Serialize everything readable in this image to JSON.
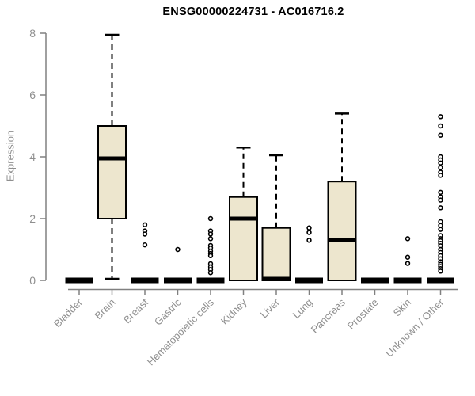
{
  "chart_data": {
    "type": "boxplot",
    "title": "ENSG00000224731 - AC016716.2",
    "ylabel": "Expression",
    "xlabel": "",
    "ylim": [
      0,
      8
    ],
    "yticks": [
      0,
      2,
      4,
      6,
      8
    ],
    "grid": false,
    "legend": "none",
    "categories": [
      "Bladder",
      "Brain",
      "Breast",
      "Gastric",
      "Hematopoietic cells",
      "Kidney",
      "Liver",
      "Lung",
      "Pancreas",
      "Prostate",
      "Skin",
      "Unknown / Other"
    ],
    "boxes": [
      {
        "category": "Bladder",
        "whisker_low": 0,
        "q1": 0,
        "median": 0,
        "q3": 0,
        "whisker_high": 0,
        "outliers": []
      },
      {
        "category": "Brain",
        "whisker_low": 0.05,
        "q1": 2.0,
        "median": 3.95,
        "q3": 5.0,
        "whisker_high": 7.95,
        "outliers": []
      },
      {
        "category": "Breast",
        "whisker_low": 0,
        "q1": 0,
        "median": 0,
        "q3": 0,
        "whisker_high": 0,
        "outliers": [
          1.8,
          1.6,
          1.5,
          1.15
        ]
      },
      {
        "category": "Gastric",
        "whisker_low": 0,
        "q1": 0,
        "median": 0,
        "q3": 0,
        "whisker_high": 0,
        "outliers": [
          1.0
        ]
      },
      {
        "category": "Hematopoietic cells",
        "whisker_low": 0,
        "q1": 0,
        "median": 0,
        "q3": 0,
        "whisker_high": 0,
        "outliers": [
          2.0,
          1.6,
          1.5,
          1.35,
          1.13,
          1.05,
          0.95,
          0.87,
          0.8,
          0.54,
          0.44,
          0.35,
          0.25
        ]
      },
      {
        "category": "Kidney",
        "whisker_low": 0,
        "q1": 0,
        "median": 2.0,
        "q3": 2.7,
        "whisker_high": 4.3,
        "outliers": []
      },
      {
        "category": "Liver",
        "whisker_low": 0,
        "q1": 0,
        "median": 0.05,
        "q3": 1.7,
        "whisker_high": 4.05,
        "outliers": []
      },
      {
        "category": "Lung",
        "whisker_low": 0,
        "q1": 0,
        "median": 0,
        "q3": 0,
        "whisker_high": 0,
        "outliers": [
          1.7,
          1.55,
          1.3
        ]
      },
      {
        "category": "Pancreas",
        "whisker_low": 0,
        "q1": 0,
        "median": 1.3,
        "q3": 3.2,
        "whisker_high": 5.4,
        "outliers": []
      },
      {
        "category": "Prostate",
        "whisker_low": 0,
        "q1": 0,
        "median": 0,
        "q3": 0,
        "whisker_high": 0,
        "outliers": []
      },
      {
        "category": "Skin",
        "whisker_low": 0,
        "q1": 0,
        "median": 0,
        "q3": 0,
        "whisker_high": 0,
        "outliers": [
          1.35,
          0.75,
          0.55
        ]
      },
      {
        "category": "Unknown / Other",
        "whisker_low": 0,
        "q1": 0,
        "median": 0,
        "q3": 0,
        "whisker_high": 0,
        "outliers": [
          5.3,
          5.0,
          4.7,
          4.0,
          3.9,
          3.8,
          3.65,
          3.5,
          3.4,
          2.85,
          2.7,
          2.6,
          2.35,
          1.9,
          1.78,
          1.65,
          1.45,
          1.35,
          1.28,
          1.2,
          1.12,
          1.0,
          0.9,
          0.8,
          0.7,
          0.6,
          0.52,
          0.45,
          0.38,
          0.3
        ]
      }
    ],
    "colors": {
      "background": "#ffffff",
      "box_fill": "#ede6ce",
      "box_stroke": "#000000",
      "median": "#000000",
      "whisker": "#000000",
      "outlier_stroke": "#000000",
      "outlier_fill": "#ffffff",
      "axis": "#808080",
      "tick_text": "#8f8f8f",
      "title_text": "#000000"
    }
  }
}
